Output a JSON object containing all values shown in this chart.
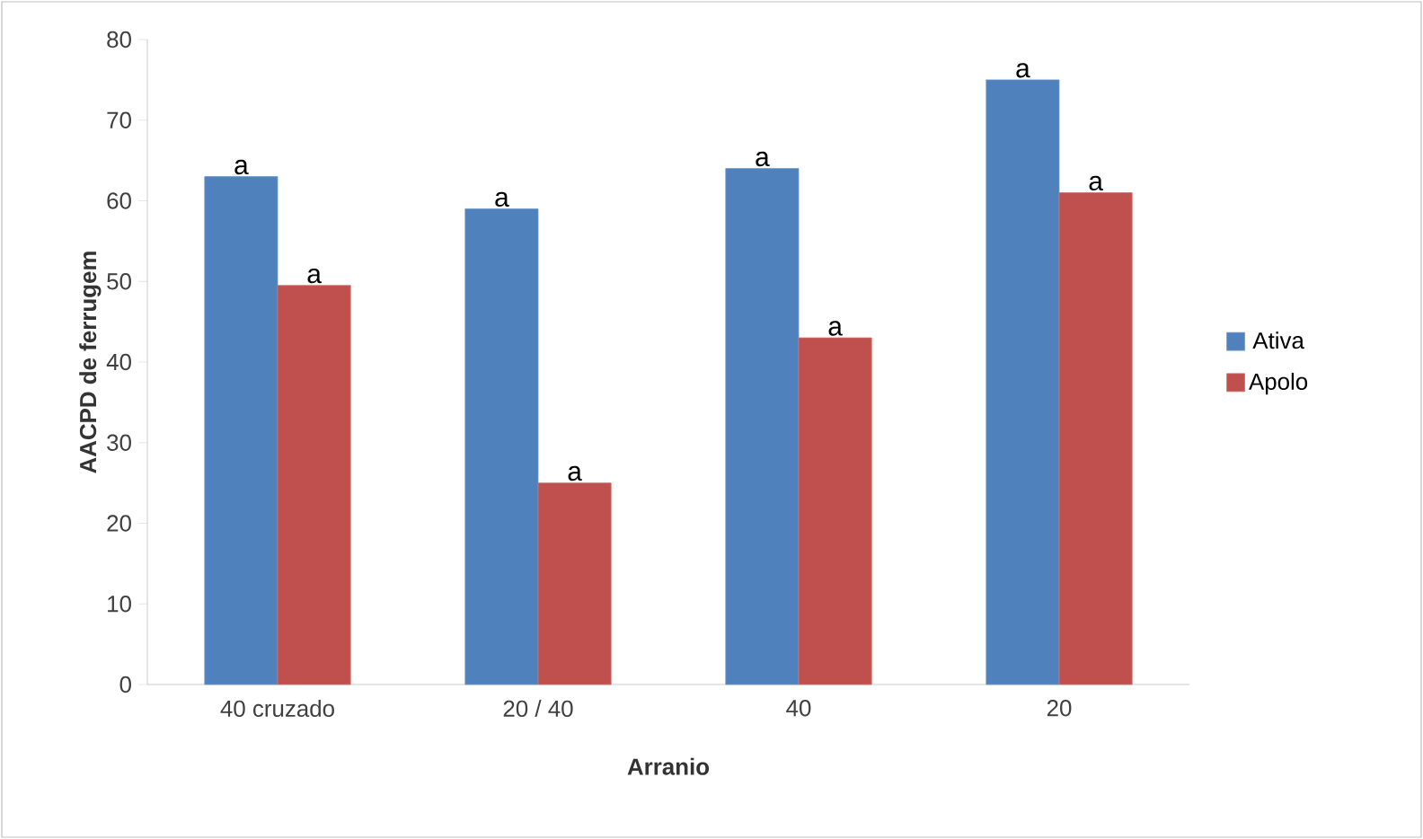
{
  "chart_data": {
    "type": "bar",
    "xlabel": "Arranio",
    "ylabel": "AACPD de ferrugem",
    "categories": [
      "40 cruzado",
      "20 / 40",
      "40",
      "20"
    ],
    "series": [
      {
        "name": "Ativa",
        "color": "#4f81bd",
        "values": [
          63,
          59,
          64,
          75
        ],
        "value_labels": [
          "a",
          "a",
          "a",
          "a"
        ]
      },
      {
        "name": "Apolo",
        "color": "#c0504d",
        "values": [
          49.5,
          25,
          43,
          61
        ],
        "value_labels": [
          "a",
          "a",
          "a",
          "a"
        ]
      }
    ],
    "ylim": [
      0,
      80
    ],
    "yticks": [
      0,
      10,
      20,
      30,
      40,
      50,
      60,
      70,
      80
    ],
    "grid": false,
    "legend": "right"
  }
}
